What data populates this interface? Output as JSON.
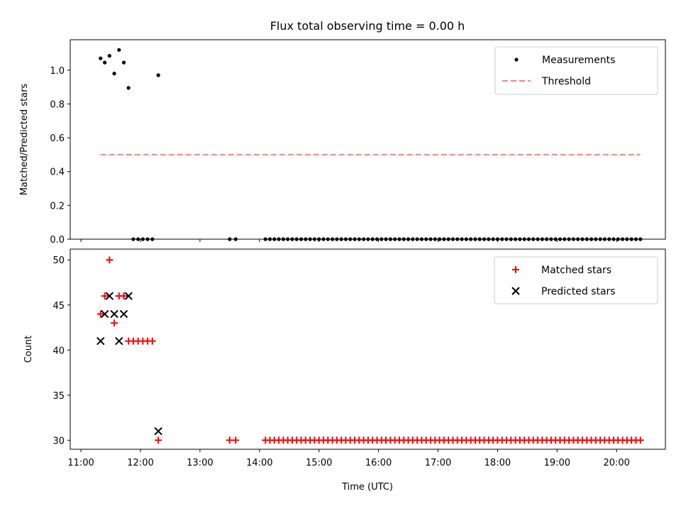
{
  "title": "Flux total observing time = 0.00 h",
  "x_ticks": [
    "11:00",
    "12:00",
    "13:00",
    "14:00",
    "15:00",
    "16:00",
    "17:00",
    "18:00",
    "19:00",
    "20:00"
  ],
  "xlabel": "Time (UTC)",
  "chart_data": [
    {
      "type": "scatter",
      "ylabel": "Matched/Predicted stars",
      "ylim": [
        0,
        1.18
      ],
      "y_ticks": [
        "0.0",
        "0.2",
        "0.4",
        "0.6",
        "0.8",
        "1.0"
      ],
      "x_unit": "hours UTC",
      "xlim": [
        10.82,
        20.82
      ],
      "legend_position": "top-right",
      "series": [
        {
          "name": "Measurements",
          "kind": "scatter",
          "marker": "dot",
          "color": "#000000",
          "points": [
            [
              11.33,
              1.07
            ],
            [
              11.4,
              1.045
            ],
            [
              11.48,
              1.085
            ],
            [
              11.56,
              0.98
            ],
            [
              11.64,
              1.12
            ],
            [
              11.72,
              1.045
            ],
            [
              11.8,
              0.895
            ],
            [
              11.88,
              0.0
            ],
            [
              11.96,
              0.0
            ],
            [
              12.04,
              0.0
            ],
            [
              12.12,
              0.0
            ],
            [
              12.2,
              0.0
            ],
            [
              12.3,
              0.97
            ],
            [
              13.5,
              0.0
            ],
            [
              13.6,
              0.0
            ]
          ],
          "zero_run": {
            "start": 14.1,
            "end": 20.4,
            "step": 0.075,
            "value": 0.0
          }
        },
        {
          "name": "Threshold",
          "kind": "line",
          "style": "dashed",
          "color": "#ff7f7f",
          "points": [
            [
              11.33,
              0.5
            ],
            [
              20.4,
              0.5
            ]
          ]
        }
      ]
    },
    {
      "type": "scatter",
      "ylabel": "Count",
      "ylim": [
        29,
        51.2
      ],
      "y_ticks": [
        "30",
        "35",
        "40",
        "45",
        "50"
      ],
      "x_unit": "hours UTC",
      "xlim": [
        10.82,
        20.82
      ],
      "legend_position": "top-right",
      "series": [
        {
          "name": "Matched stars",
          "marker": "plus",
          "color": "#ff0000",
          "points": [
            [
              11.33,
              44
            ],
            [
              11.4,
              46
            ],
            [
              11.48,
              50
            ],
            [
              11.56,
              43
            ],
            [
              11.64,
              46
            ],
            [
              11.72,
              46
            ],
            [
              11.8,
              41
            ],
            [
              11.88,
              41
            ],
            [
              11.96,
              41
            ],
            [
              12.04,
              41
            ],
            [
              12.12,
              41
            ],
            [
              12.2,
              41
            ],
            [
              12.3,
              30
            ],
            [
              13.5,
              30
            ],
            [
              13.6,
              30
            ]
          ],
          "zero_run": {
            "start": 14.1,
            "end": 20.4,
            "step": 0.075,
            "value": 30
          }
        },
        {
          "name": "Predicted stars",
          "marker": "x",
          "color": "#000000",
          "points": [
            [
              11.33,
              41
            ],
            [
              11.4,
              44
            ],
            [
              11.48,
              46
            ],
            [
              11.56,
              44
            ],
            [
              11.64,
              41
            ],
            [
              11.72,
              44
            ],
            [
              11.8,
              46
            ],
            [
              12.3,
              31
            ]
          ]
        }
      ]
    }
  ]
}
